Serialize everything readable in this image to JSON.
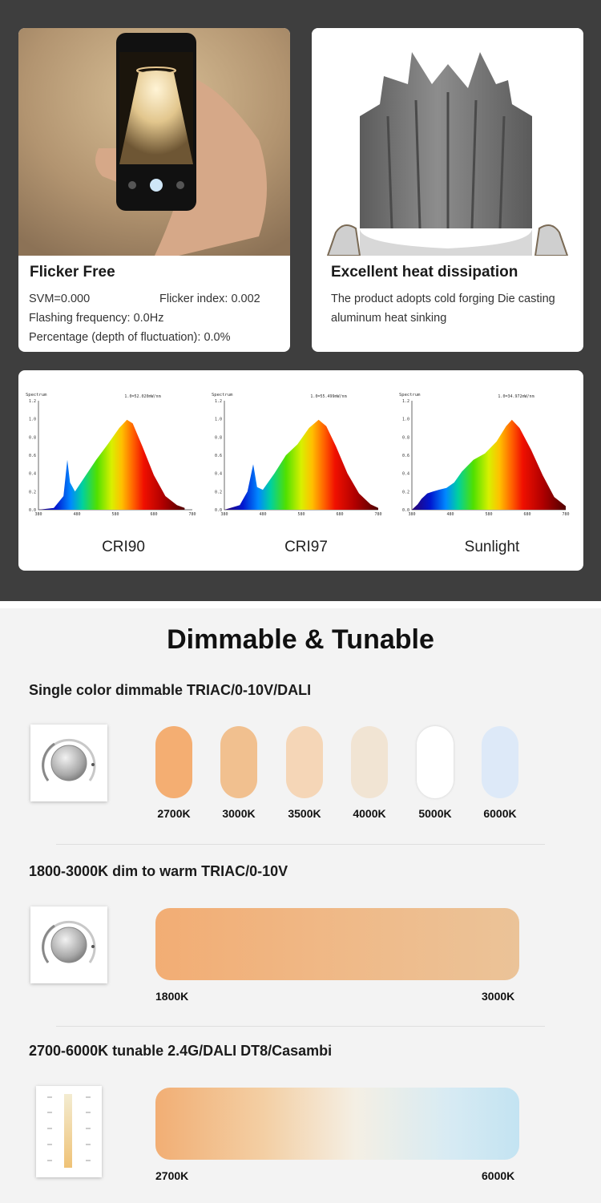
{
  "cards": {
    "flicker": {
      "title": "Flicker Free",
      "svm": "SVM=0.000",
      "flicker_index": "Flicker index: 0.002",
      "flashing": "Flashing frequency: 0.0Hz",
      "percentage": "Percentage (depth of fluctuation): 0.0%"
    },
    "heat": {
      "title": "Excellent heat dissipation",
      "line1": "The product adopts cold forging Die casting",
      "line2": "aluminum heat sinking"
    }
  },
  "spectra": [
    {
      "label": "CRI90",
      "header": "1.0=52.020mW/nm",
      "axis_title": "Spectrum"
    },
    {
      "label": "CRI97",
      "header": "1.0=55.499mW/nm",
      "axis_title": "Spectrum"
    },
    {
      "label": "Sunlight",
      "header": "1.0=34.972mW/nm",
      "axis_title": "Spectrum"
    }
  ],
  "spectrum_axes": {
    "y_ticks": [
      "0.0",
      "0.2",
      "0.4",
      "0.6",
      "0.8",
      "1.0",
      "1.2"
    ],
    "x_ticks": [
      "380",
      "480",
      "580",
      "680",
      "780"
    ],
    "x_title": "Wavelength(nm)"
  },
  "dimming": {
    "title": "Dimmable & Tunable",
    "single": {
      "label": "Single color dimmable TRIAC/0-10V/DALI",
      "swatches": [
        {
          "temp": "2700K",
          "color": "#f4ae72"
        },
        {
          "temp": "3000K",
          "color": "#f1c08f"
        },
        {
          "temp": "3500K",
          "color": "#f5d6b7"
        },
        {
          "temp": "4000K",
          "color": "#f1e4d3"
        },
        {
          "temp": "5000K",
          "color": "#ffffff"
        },
        {
          "temp": "6000K",
          "color": "#dde9f8"
        }
      ]
    },
    "warm": {
      "label": "1800-3000K dim to warm TRIAC/0-10V",
      "start": "1800K",
      "end": "3000K"
    },
    "tunable": {
      "label": "2700-6000K tunable 2.4G/DALI DT8/Casambi",
      "start": "2700K",
      "end": "6000K"
    }
  }
}
